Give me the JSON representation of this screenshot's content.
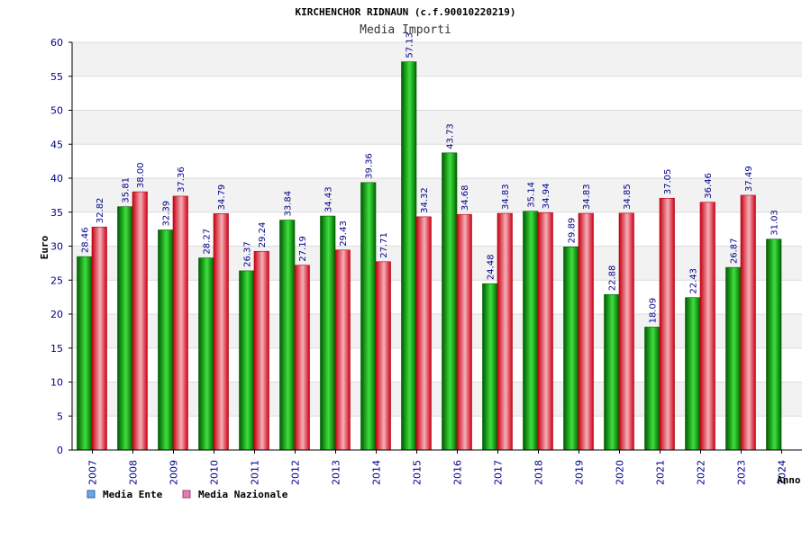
{
  "chart_data": {
    "type": "bar",
    "title": "KIRCHENCHOR RIDNAUN (c.f.90010220219)",
    "subtitle": "Media Importi",
    "ylabel": "Euro",
    "xlabel": "Anno",
    "ylim": [
      0,
      60
    ],
    "yticks": [
      0,
      5,
      10,
      15,
      20,
      25,
      30,
      35,
      40,
      45,
      50,
      55,
      60
    ],
    "categories": [
      "2007",
      "2008",
      "2009",
      "2010",
      "2011",
      "2012",
      "2013",
      "2014",
      "2015",
      "2016",
      "2017",
      "2018",
      "2019",
      "2020",
      "2021",
      "2022",
      "2023",
      "2024"
    ],
    "series": [
      {
        "name": "Media Ente",
        "color": "#00a000",
        "values": [
          28.46,
          35.81,
          32.39,
          28.27,
          26.37,
          33.84,
          34.43,
          39.36,
          57.13,
          43.73,
          24.48,
          35.14,
          29.89,
          22.88,
          18.09,
          22.43,
          26.87,
          31.03
        ]
      },
      {
        "name": "Media Nazionale",
        "color": "#e02020",
        "values": [
          32.82,
          38.0,
          37.36,
          34.79,
          29.24,
          27.19,
          29.43,
          27.71,
          34.32,
          34.68,
          34.83,
          34.94,
          34.83,
          34.85,
          37.05,
          36.46,
          37.49,
          null
        ]
      }
    ],
    "legend": [
      {
        "label": "Media Ente",
        "color": "#6aa8e8"
      },
      {
        "label": "Media Nazionale",
        "color": "#e080b0"
      }
    ]
  }
}
